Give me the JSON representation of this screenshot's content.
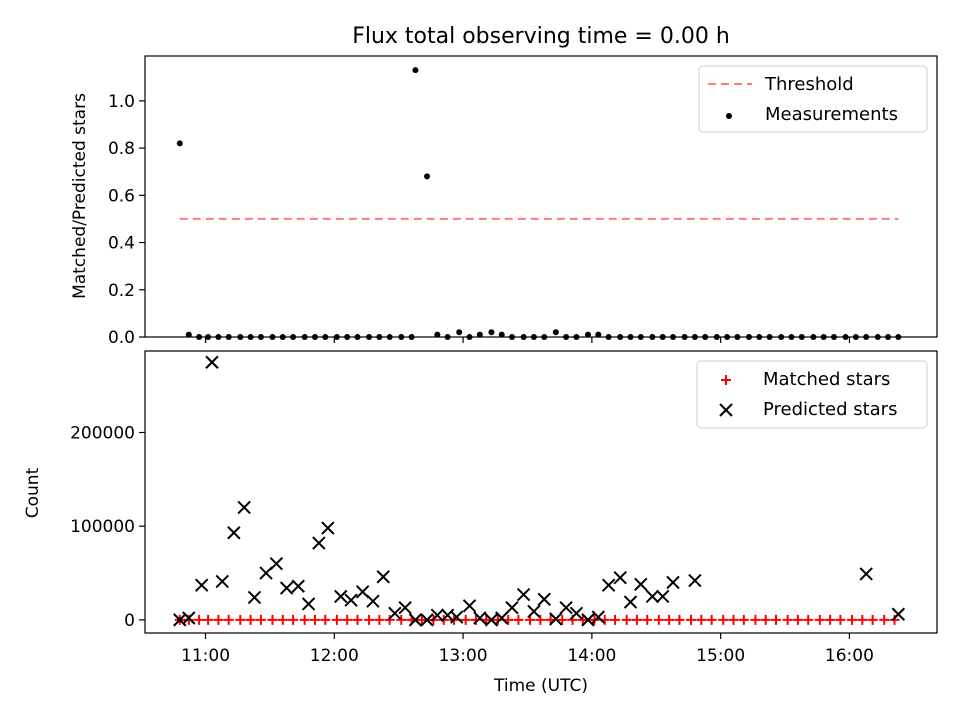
{
  "chart_data": [
    {
      "type": "scatter",
      "title": "Flux total observing time = 0.00 h",
      "xlabel": "",
      "ylabel": "Matched/Predicted stars",
      "xlim": [
        10.53,
        16.68
      ],
      "ylim": [
        0,
        1.19
      ],
      "y_ticks": [
        0.0,
        0.2,
        0.4,
        0.6,
        0.8,
        1.0
      ],
      "y_tick_labels": [
        "0.0",
        "0.2",
        "0.4",
        "0.6",
        "0.8",
        "1.0"
      ],
      "x_ticks": [
        11,
        12,
        13,
        14,
        15,
        16
      ],
      "legend_position": "top-right",
      "threshold": {
        "label": "Threshold",
        "value": 0.5,
        "x_range": [
          10.8,
          16.38
        ],
        "color": "#ff7a7a"
      },
      "series": [
        {
          "name": "Measurements",
          "color": "#000000",
          "x": [
            10.8,
            10.87,
            10.95,
            11.02,
            11.1,
            11.18,
            11.27,
            11.35,
            11.43,
            11.52,
            11.6,
            11.68,
            11.77,
            11.85,
            11.93,
            12.02,
            12.1,
            12.18,
            12.27,
            12.35,
            12.43,
            12.52,
            12.6,
            12.63,
            12.72,
            12.8,
            12.88,
            12.97,
            13.05,
            13.13,
            13.22,
            13.3,
            13.38,
            13.47,
            13.55,
            13.63,
            13.72,
            13.8,
            13.88,
            13.97,
            14.05,
            14.13,
            14.22,
            14.3,
            14.38,
            14.47,
            14.55,
            14.63,
            14.72,
            14.8,
            14.88,
            14.97,
            15.05,
            15.13,
            15.22,
            15.3,
            15.38,
            15.47,
            15.55,
            15.63,
            15.72,
            15.8,
            15.88,
            15.97,
            16.05,
            16.13,
            16.22,
            16.3,
            16.38
          ],
          "values": [
            0.82,
            0.01,
            0.0,
            0.0,
            0.0,
            0.0,
            0.0,
            0.0,
            0.0,
            0.0,
            0.0,
            0.0,
            0.0,
            0.0,
            0.0,
            0.0,
            0.0,
            0.0,
            0.0,
            0.0,
            0.0,
            0.0,
            0.0,
            1.13,
            0.68,
            0.01,
            0.0,
            0.02,
            0.0,
            0.01,
            0.02,
            0.01,
            0.0,
            0.0,
            0.0,
            0.0,
            0.02,
            0.0,
            0.0,
            0.01,
            0.01,
            0.0,
            0.0,
            0.0,
            0.0,
            0.0,
            0.0,
            0.0,
            0.0,
            0.0,
            0.0,
            0.0,
            0.0,
            0.0,
            0.0,
            0.0,
            0.0,
            0.0,
            0.0,
            0.0,
            0.0,
            0.0,
            0.0,
            0.0,
            0.0,
            0.0,
            0.0,
            0.0,
            0.0
          ]
        }
      ]
    },
    {
      "type": "scatter",
      "title": "",
      "xlabel": "Time (UTC)",
      "ylabel": "Count",
      "xlim": [
        10.53,
        16.68
      ],
      "ylim": [
        -14000,
        287000
      ],
      "y_ticks": [
        0,
        100000,
        200000
      ],
      "y_tick_labels": [
        "0",
        "100000",
        "200000"
      ],
      "x_ticks": [
        11,
        12,
        13,
        14,
        15,
        16
      ],
      "x_tick_labels": [
        "11:00",
        "12:00",
        "13:00",
        "14:00",
        "15:00",
        "16:00"
      ],
      "legend_position": "top-right",
      "series": [
        {
          "name": "Matched stars",
          "marker": "plus",
          "color": "#ff0000",
          "x": [
            10.8,
            10.87,
            10.95,
            11.02,
            11.1,
            11.18,
            11.27,
            11.35,
            11.43,
            11.52,
            11.6,
            11.68,
            11.77,
            11.85,
            11.93,
            12.02,
            12.1,
            12.18,
            12.27,
            12.35,
            12.43,
            12.52,
            12.6,
            12.68,
            12.77,
            12.85,
            12.93,
            13.02,
            13.1,
            13.18,
            13.27,
            13.35,
            13.43,
            13.52,
            13.6,
            13.68,
            13.77,
            13.85,
            13.93,
            14.02,
            14.1,
            14.18,
            14.27,
            14.35,
            14.43,
            14.52,
            14.6,
            14.68,
            14.77,
            14.85,
            14.93,
            15.02,
            15.1,
            15.18,
            15.27,
            15.35,
            15.43,
            15.52,
            15.6,
            15.68,
            15.77,
            15.85,
            15.93,
            16.02,
            16.1,
            16.18,
            16.27,
            16.35
          ],
          "values": [
            0,
            0,
            0,
            0,
            0,
            0,
            0,
            0,
            0,
            0,
            0,
            0,
            0,
            0,
            0,
            0,
            0,
            0,
            0,
            0,
            0,
            0,
            0,
            0,
            0,
            0,
            0,
            0,
            0,
            0,
            0,
            0,
            0,
            0,
            0,
            0,
            0,
            0,
            0,
            0,
            0,
            0,
            0,
            0,
            0,
            0,
            0,
            0,
            0,
            0,
            0,
            0,
            0,
            0,
            0,
            0,
            0,
            0,
            0,
            0,
            0,
            0,
            0,
            0,
            0,
            0,
            0,
            0
          ]
        },
        {
          "name": "Predicted stars",
          "marker": "x",
          "color": "#000000",
          "x": [
            10.8,
            10.87,
            10.97,
            11.05,
            11.13,
            11.22,
            11.3,
            11.38,
            11.47,
            11.55,
            11.63,
            11.72,
            11.8,
            11.88,
            11.95,
            12.05,
            12.13,
            12.22,
            12.3,
            12.38,
            12.47,
            12.55,
            12.63,
            12.72,
            12.8,
            12.88,
            12.95,
            13.05,
            13.13,
            13.22,
            13.3,
            13.38,
            13.47,
            13.55,
            13.63,
            13.72,
            13.8,
            13.88,
            13.97,
            14.05,
            14.13,
            14.22,
            14.3,
            14.38,
            14.47,
            14.55,
            14.63,
            14.8,
            16.13,
            16.38
          ],
          "values": [
            0,
            2000,
            37000,
            275000,
            41000,
            93000,
            120000,
            24000,
            50000,
            60000,
            34000,
            36000,
            17000,
            82000,
            98000,
            25000,
            21000,
            30000,
            20000,
            46000,
            7000,
            13000,
            0,
            0,
            5000,
            5000,
            3000,
            15000,
            2000,
            0,
            2000,
            13000,
            27000,
            9000,
            22000,
            1000,
            13000,
            7000,
            0,
            3000,
            37000,
            45000,
            19000,
            38000,
            25000,
            25000,
            40000,
            42000,
            49000,
            6000
          ]
        }
      ]
    }
  ]
}
